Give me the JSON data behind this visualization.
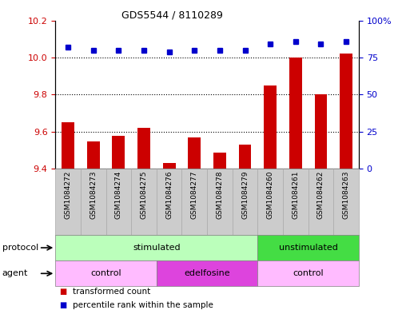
{
  "title": "GDS5544 / 8110289",
  "samples": [
    "GSM1084272",
    "GSM1084273",
    "GSM1084274",
    "GSM1084275",
    "GSM1084276",
    "GSM1084277",
    "GSM1084278",
    "GSM1084279",
    "GSM1084260",
    "GSM1084261",
    "GSM1084262",
    "GSM1084263"
  ],
  "transformed_count": [
    9.65,
    9.55,
    9.58,
    9.62,
    9.43,
    9.57,
    9.49,
    9.53,
    9.85,
    10.0,
    9.8,
    10.02
  ],
  "percentile_rank": [
    82,
    80,
    80,
    80,
    79,
    80,
    80,
    80,
    84,
    86,
    84,
    86
  ],
  "ylim_left": [
    9.4,
    10.2
  ],
  "ylim_right": [
    0,
    100
  ],
  "yticks_left": [
    9.4,
    9.6,
    9.8,
    10.0,
    10.2
  ],
  "yticks_right": [
    0,
    25,
    50,
    75,
    100
  ],
  "bar_color": "#cc0000",
  "dot_color": "#0000cc",
  "protocol_groups": [
    {
      "label": "stimulated",
      "start": 0,
      "end": 8,
      "color": "#bbffbb"
    },
    {
      "label": "unstimulated",
      "start": 8,
      "end": 12,
      "color": "#44dd44"
    }
  ],
  "agent_groups": [
    {
      "label": "control",
      "start": 0,
      "end": 4,
      "color": "#ffbbff"
    },
    {
      "label": "edelfosine",
      "start": 4,
      "end": 8,
      "color": "#dd44dd"
    },
    {
      "label": "control",
      "start": 8,
      "end": 12,
      "color": "#ffbbff"
    }
  ],
  "legend_items": [
    {
      "label": "transformed count",
      "color": "#cc0000"
    },
    {
      "label": "percentile rank within the sample",
      "color": "#0000cc"
    }
  ],
  "right_axis_label_color": "#0000cc",
  "left_axis_label_color": "#cc0000",
  "protocol_row_label": "protocol",
  "agent_row_label": "agent",
  "sample_cell_color": "#cccccc",
  "sample_cell_edge": "#aaaaaa"
}
